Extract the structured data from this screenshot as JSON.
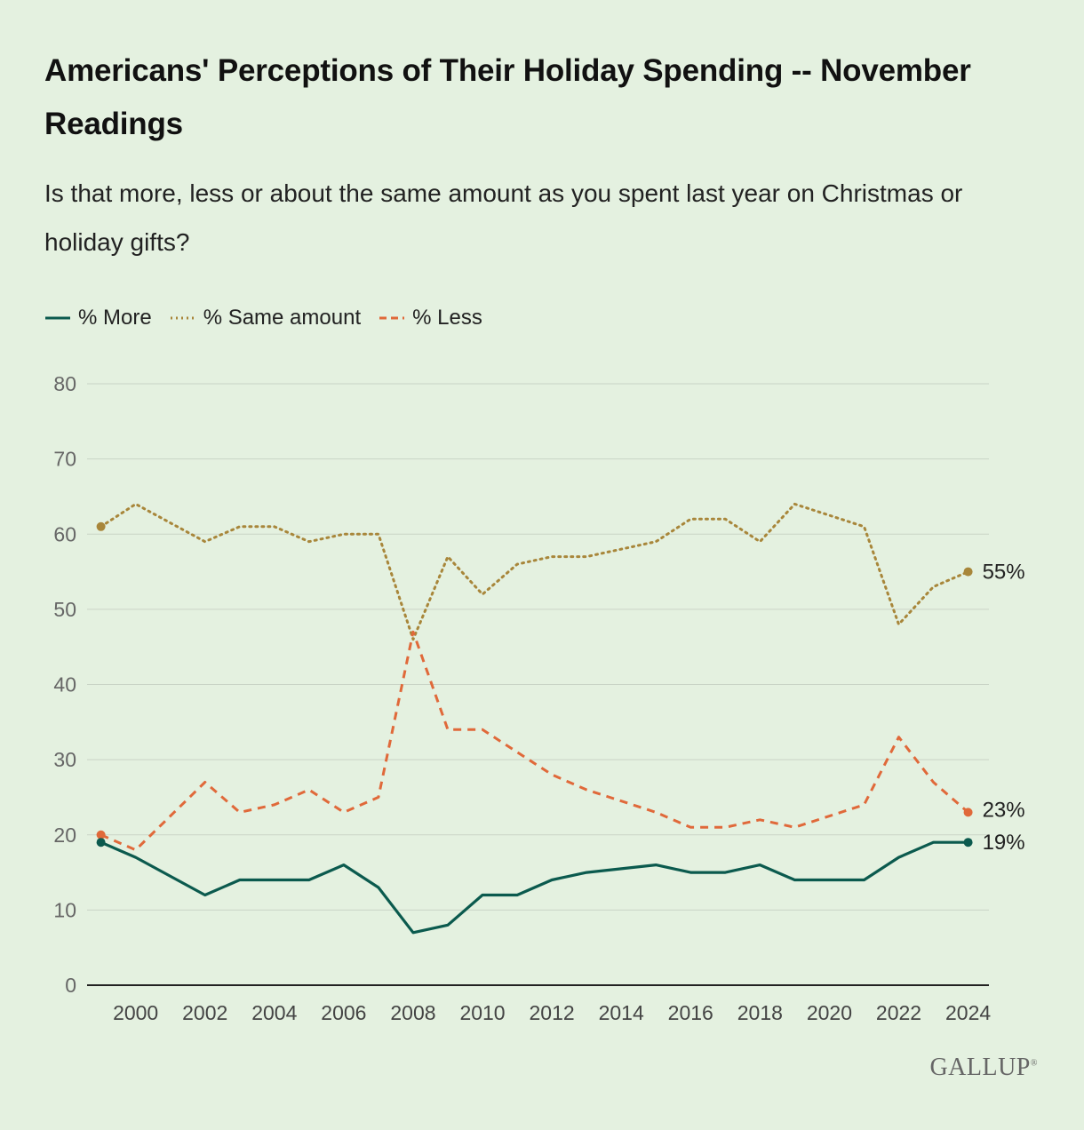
{
  "title": "Americans' Perceptions of Their Holiday Spending -- November Readings",
  "subtitle": "Is that more, less or about the same amount as you spent last year on Christmas or holiday gifts?",
  "brand": "GALLUP",
  "brand_mark": "®",
  "legend": [
    {
      "label": "% More",
      "style": "solid"
    },
    {
      "label": "% Same amount",
      "style": "dotted"
    },
    {
      "label": "% Less",
      "style": "dashed"
    }
  ],
  "colors": {
    "more": "#0b5a4e",
    "same": "#a8863a",
    "less": "#e0693a"
  },
  "chart_data": {
    "type": "line",
    "title": "Americans' Perceptions of Their Holiday Spending -- November Readings",
    "xlabel": "",
    "ylabel": "",
    "ylim": [
      0,
      80
    ],
    "yticks": [
      0,
      10,
      20,
      30,
      40,
      50,
      60,
      70,
      80
    ],
    "xticks": [
      2000,
      2002,
      2004,
      2006,
      2008,
      2010,
      2012,
      2014,
      2016,
      2018,
      2020,
      2022,
      2024
    ],
    "x": [
      1999,
      2000,
      2002,
      2003,
      2004,
      2005,
      2006,
      2007,
      2008,
      2009,
      2010,
      2011,
      2012,
      2013,
      2015,
      2016,
      2017,
      2018,
      2019,
      2021,
      2022,
      2023,
      2024
    ],
    "grid": true,
    "legend_position": "top-left",
    "series": [
      {
        "name": "% More",
        "key": "more",
        "style": "solid",
        "values": [
          19,
          17,
          12,
          14,
          14,
          14,
          16,
          13,
          7,
          8,
          12,
          12,
          14,
          15,
          16,
          15,
          15,
          16,
          14,
          14,
          17,
          19,
          19
        ],
        "end_label": "19%"
      },
      {
        "name": "% Same amount",
        "key": "same",
        "style": "dotted",
        "values": [
          61,
          64,
          59,
          61,
          61,
          59,
          60,
          60,
          46,
          57,
          52,
          56,
          57,
          57,
          59,
          62,
          62,
          59,
          64,
          61,
          48,
          53,
          55
        ],
        "end_label": "55%"
      },
      {
        "name": "% Less",
        "key": "less",
        "style": "dashed",
        "values": [
          20,
          18,
          27,
          23,
          24,
          26,
          23,
          25,
          47,
          34,
          34,
          31,
          28,
          26,
          23,
          21,
          21,
          22,
          21,
          24,
          33,
          27,
          23
        ],
        "end_label": "23%"
      }
    ]
  }
}
